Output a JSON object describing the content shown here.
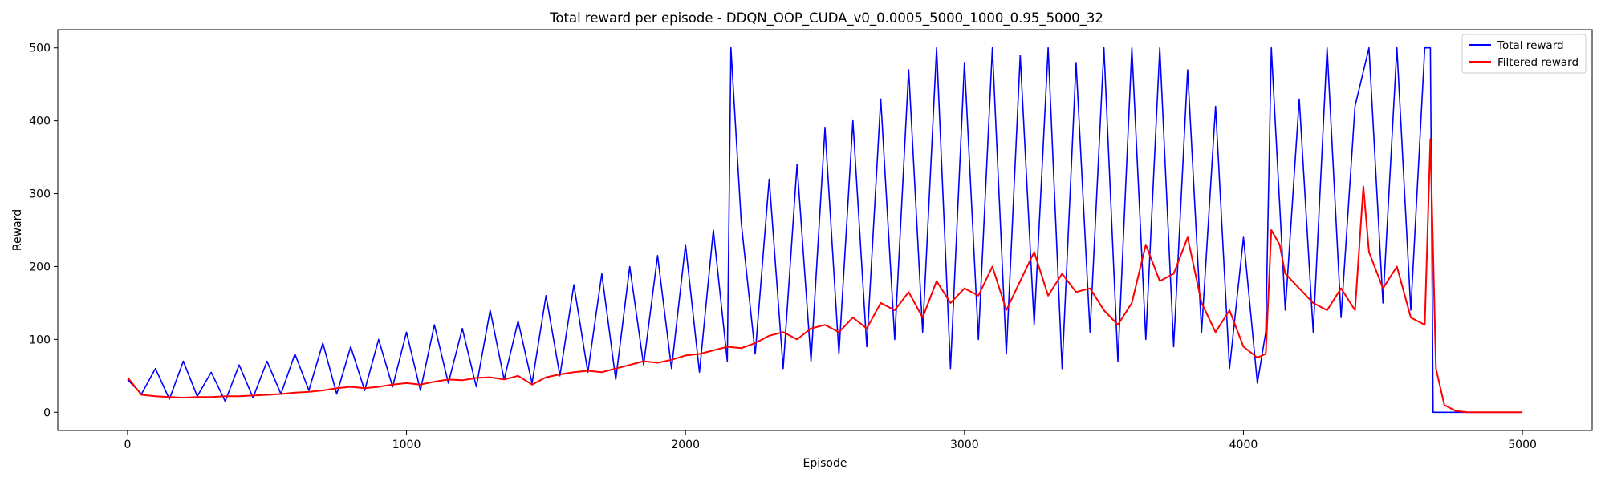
{
  "chart_data": {
    "type": "line",
    "title": "Total reward per episode - DDQN_OOP_CUDA_v0_0.0005_5000_1000_0.95_5000_32",
    "xlabel": "Episode",
    "ylabel": "Reward",
    "xlim": [
      -250,
      5250
    ],
    "ylim": [
      -25,
      525
    ],
    "xticks": [
      0,
      1000,
      2000,
      3000,
      4000,
      5000
    ],
    "yticks": [
      0,
      100,
      200,
      300,
      400,
      500
    ],
    "grid": false,
    "legend_position": "top-right",
    "series": [
      {
        "name": "Total reward",
        "color": "#0000ff",
        "x": [
          0,
          50,
          100,
          150,
          200,
          250,
          300,
          350,
          400,
          450,
          500,
          550,
          600,
          650,
          700,
          750,
          800,
          850,
          900,
          950,
          1000,
          1050,
          1100,
          1150,
          1200,
          1250,
          1300,
          1350,
          1400,
          1450,
          1500,
          1550,
          1600,
          1650,
          1700,
          1750,
          1800,
          1850,
          1900,
          1950,
          2000,
          2050,
          2100,
          2150,
          2163,
          2200,
          2250,
          2300,
          2350,
          2400,
          2450,
          2500,
          2550,
          2600,
          2650,
          2700,
          2750,
          2800,
          2850,
          2900,
          2950,
          3000,
          3050,
          3100,
          3150,
          3200,
          3250,
          3300,
          3350,
          3400,
          3450,
          3500,
          3550,
          3600,
          3650,
          3700,
          3750,
          3800,
          3850,
          3900,
          3950,
          4000,
          4050,
          4080,
          4100,
          4150,
          4200,
          4250,
          4300,
          4350,
          4400,
          4450,
          4500,
          4550,
          4600,
          4650,
          4670,
          4680,
          4700,
          5000
        ],
        "values": [
          45,
          25,
          60,
          18,
          70,
          22,
          55,
          15,
          65,
          20,
          70,
          25,
          80,
          30,
          95,
          25,
          90,
          30,
          100,
          35,
          110,
          30,
          120,
          40,
          115,
          35,
          140,
          45,
          125,
          40,
          160,
          50,
          175,
          55,
          190,
          45,
          200,
          65,
          215,
          60,
          230,
          55,
          250,
          70,
          500,
          260,
          80,
          320,
          60,
          340,
          70,
          390,
          80,
          400,
          90,
          430,
          100,
          470,
          110,
          500,
          60,
          480,
          100,
          500,
          80,
          490,
          120,
          500,
          60,
          480,
          110,
          500,
          70,
          500,
          100,
          500,
          90,
          470,
          110,
          420,
          60,
          240,
          40,
          110,
          500,
          140,
          430,
          110,
          500,
          130,
          420,
          500,
          150,
          500,
          140,
          500,
          500,
          0,
          0,
          0
        ]
      },
      {
        "name": "Filtered reward",
        "color": "#ff0000",
        "x": [
          0,
          50,
          100,
          150,
          200,
          250,
          300,
          350,
          400,
          450,
          500,
          550,
          600,
          650,
          700,
          750,
          800,
          850,
          900,
          950,
          1000,
          1050,
          1100,
          1150,
          1200,
          1250,
          1300,
          1350,
          1400,
          1450,
          1500,
          1550,
          1600,
          1650,
          1700,
          1750,
          1800,
          1850,
          1900,
          1950,
          2000,
          2050,
          2100,
          2150,
          2200,
          2250,
          2300,
          2350,
          2400,
          2450,
          2500,
          2550,
          2600,
          2650,
          2700,
          2750,
          2800,
          2850,
          2900,
          2950,
          3000,
          3050,
          3100,
          3150,
          3200,
          3250,
          3300,
          3350,
          3400,
          3450,
          3500,
          3550,
          3600,
          3650,
          3700,
          3750,
          3800,
          3850,
          3900,
          3950,
          4000,
          4050,
          4080,
          4100,
          4130,
          4150,
          4200,
          4250,
          4300,
          4350,
          4400,
          4430,
          4450,
          4500,
          4550,
          4600,
          4650,
          4670,
          4690,
          4720,
          4760,
          4800,
          5000
        ],
        "values": [
          48,
          24,
          22,
          21,
          20,
          21,
          21,
          22,
          22,
          23,
          24,
          25,
          27,
          28,
          30,
          33,
          35,
          33,
          35,
          38,
          40,
          38,
          42,
          45,
          44,
          47,
          48,
          45,
          50,
          38,
          48,
          52,
          55,
          57,
          55,
          60,
          65,
          70,
          68,
          72,
          78,
          80,
          85,
          90,
          88,
          95,
          105,
          110,
          100,
          115,
          120,
          110,
          130,
          115,
          150,
          140,
          165,
          130,
          180,
          150,
          170,
          160,
          200,
          140,
          180,
          220,
          160,
          190,
          165,
          170,
          140,
          120,
          150,
          230,
          180,
          190,
          240,
          150,
          110,
          140,
          90,
          75,
          80,
          250,
          230,
          190,
          170,
          150,
          140,
          170,
          140,
          310,
          220,
          170,
          200,
          130,
          120,
          375,
          60,
          10,
          2,
          0,
          0
        ]
      }
    ]
  }
}
